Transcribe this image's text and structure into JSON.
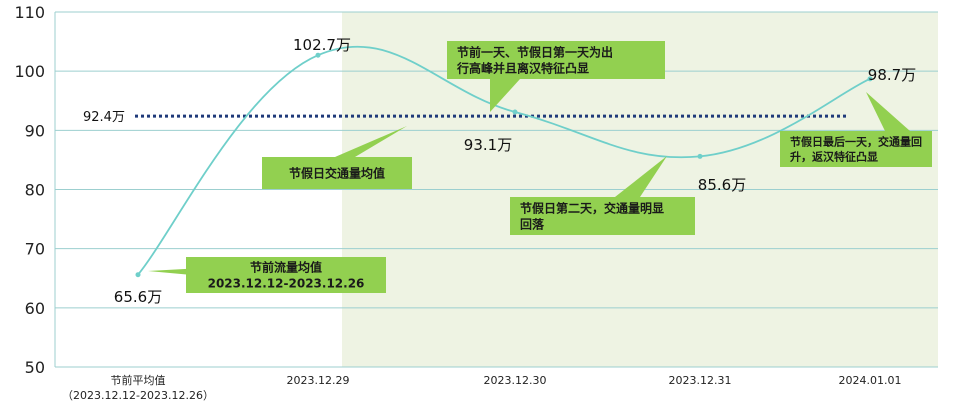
{
  "chart_data": {
    "type": "line",
    "categories": [
      {
        "line1": "节前平均值",
        "line2": "（2023.12.12-2023.12.26）"
      },
      {
        "line1": "2023.12.29",
        "line2": ""
      },
      {
        "line1": "2023.12.30",
        "line2": ""
      },
      {
        "line1": "2023.12.31",
        "line2": ""
      },
      {
        "line1": "2024.01.01",
        "line2": ""
      }
    ],
    "series": [
      {
        "values": [
          65.6,
          102.7,
          93.1,
          85.6,
          98.7
        ],
        "color": "#6fcfca"
      }
    ],
    "average_line": {
      "value": 92.4,
      "label": "92.4万",
      "color": "#1f3a7a",
      "style": "dotted"
    },
    "data_labels": [
      "65.6万",
      "102.7万",
      "93.1万",
      "85.6万",
      "98.7万"
    ],
    "ylim": [
      50,
      110
    ],
    "yticks": [
      50,
      60,
      70,
      80,
      90,
      100,
      110
    ],
    "grid": true,
    "holiday_shading": {
      "from_category": 1,
      "to_category": 4,
      "color": "#eef3e3"
    },
    "annotations": [
      {
        "lines": [
          "节前流量均值",
          "2023.12.12-2023.12.26"
        ],
        "target_category": 0
      },
      {
        "lines": [
          "节假日交通量均值"
        ],
        "target": "average_line"
      },
      {
        "lines": [
          "节前一天、节假日第一天为出",
          "行高峰并且离汉特征凸显"
        ],
        "target_category": 1
      },
      {
        "lines": [
          "节假日第二天，交通量明显",
          "回落"
        ],
        "target_category": 3
      },
      {
        "lines": [
          "节假日最后一天，交通量回",
          "升，返汉特征凸显"
        ],
        "target_category": 4
      }
    ],
    "callout_color": "#92d050"
  }
}
